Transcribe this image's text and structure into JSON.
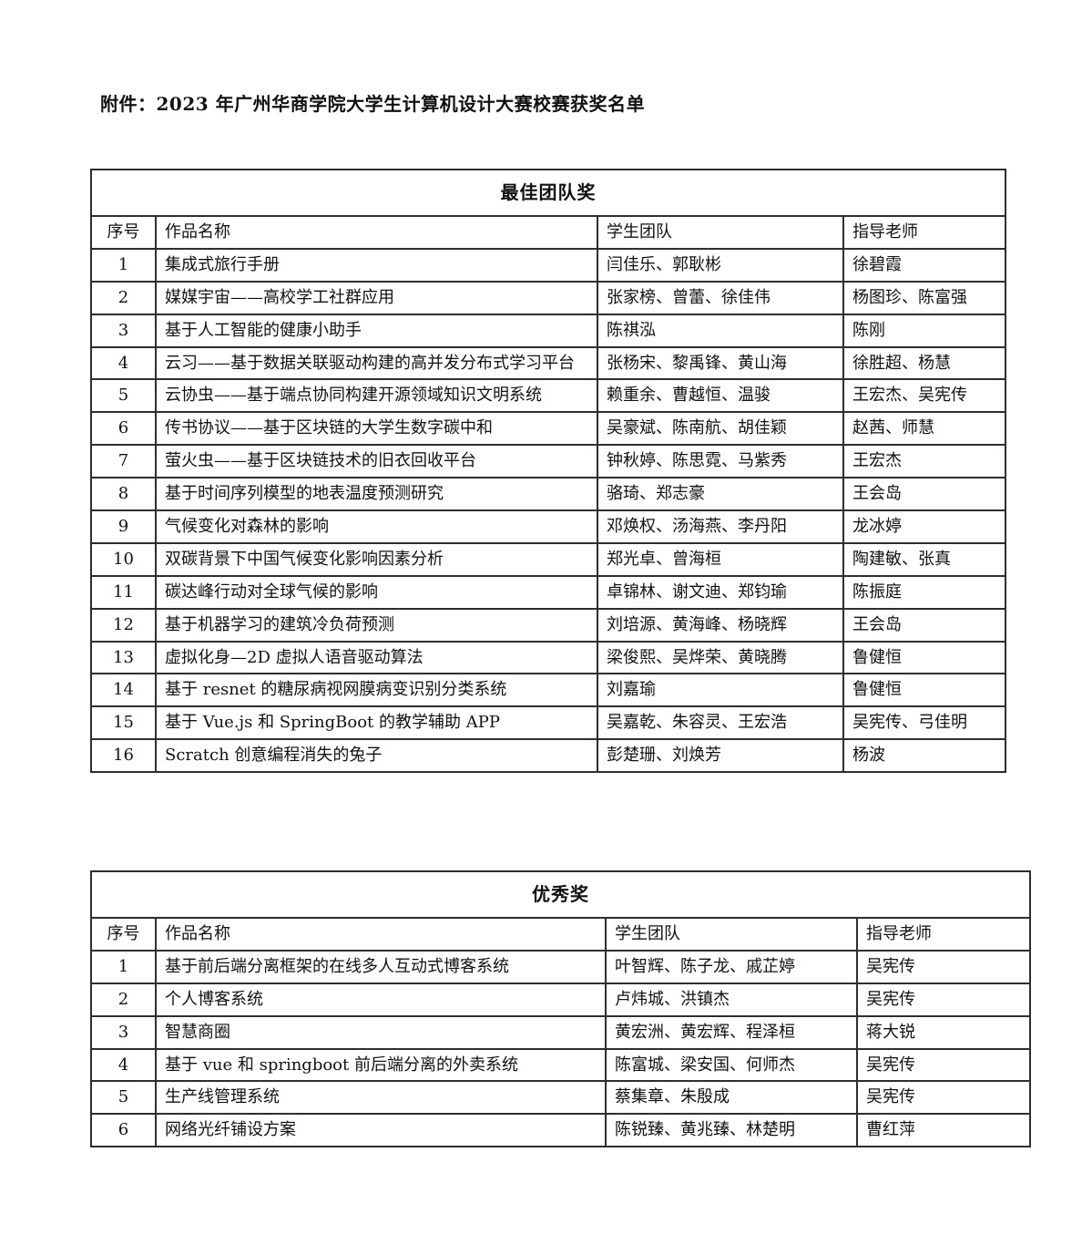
{
  "doc": {
    "title": "附件：2023 年广州华商学院大学生计算机设计大赛校赛获奖名单"
  },
  "tables": [
    {
      "title": "最佳团队奖",
      "headers": [
        "序号",
        "作品名称",
        "学生团队",
        "指导老师"
      ],
      "rows": [
        [
          "1",
          "集成式旅行手册",
          "闫佳乐、郭耿彬",
          "徐碧霞"
        ],
        [
          "2",
          "媒媒宇宙——高校学工社群应用",
          "张家榜、曾蕾、徐佳伟",
          "杨图珍、陈富强"
        ],
        [
          "3",
          "基于人工智能的健康小助手",
          "陈祺泓",
          "陈刚"
        ],
        [
          "4",
          "云习——基于数据关联驱动构建的高并发分布式学习平台",
          "张杨宋、黎禹锋、黄山海",
          "徐胜超、杨慧"
        ],
        [
          "5",
          "云协虫——基于端点协同构建开源领域知识文明系统",
          "赖重余、曹越恒、温骏",
          "王宏杰、吴宪传"
        ],
        [
          "6",
          "传书协议——基于区块链的大学生数字碳中和",
          "吴豪斌、陈南航、胡佳颖",
          "赵茜、师慧"
        ],
        [
          "7",
          "萤火虫——基于区块链技术的旧衣回收平台",
          "钟秋婷、陈思霓、马紫秀",
          "王宏杰"
        ],
        [
          "8",
          "基于时间序列模型的地表温度预测研究",
          "骆琦、郑志豪",
          "王会岛"
        ],
        [
          "9",
          "气候变化对森林的影响",
          "邓焕权、汤海燕、李丹阳",
          "龙冰婷"
        ],
        [
          "10",
          "双碳背景下中国气候变化影响因素分析",
          "郑光卓、曾海桓",
          "陶建敏、张真"
        ],
        [
          "11",
          "碳达峰行动对全球气候的影响",
          "卓锦林、谢文迪、郑钧瑜",
          "陈振庭"
        ],
        [
          "12",
          "基于机器学习的建筑冷负荷预测",
          "刘培源、黄海峰、杨晓辉",
          "王会岛"
        ],
        [
          "13",
          "虚拟化身—2D 虚拟人语音驱动算法",
          "梁俊熙、吴烨荣、黄晓腾",
          "鲁健恒"
        ],
        [
          "14",
          "基于 resnet 的糖尿病视网膜病变识别分类系统",
          "刘嘉瑜",
          "鲁健恒"
        ],
        [
          "15",
          "基于 Vue.js 和 SpringBoot 的教学辅助 APP",
          "吴嘉乾、朱容灵、王宏浩",
          "吴宪传、弓佳明"
        ],
        [
          "16",
          "Scratch 创意编程消失的兔子",
          "彭楚珊、刘焕芳",
          "杨波"
        ]
      ]
    },
    {
      "title": "优秀奖",
      "headers": [
        "序号",
        "作品名称",
        "学生团队",
        "指导老师"
      ],
      "rows": [
        [
          "1",
          "基于前后端分离框架的在线多人互动式博客系统",
          "叶智辉、陈子龙、戚芷婷",
          "吴宪传"
        ],
        [
          "2",
          "个人博客系统",
          "卢炜城、洪镇杰",
          "吴宪传"
        ],
        [
          "3",
          "智慧商圈",
          "黄宏洲、黄宏辉、程泽桓",
          "蒋大锐"
        ],
        [
          "4",
          "基于 vue 和 springboot 前后端分离的外卖系统",
          "陈富城、梁安国、何师杰",
          "吴宪传"
        ],
        [
          "5",
          "生产线管理系统",
          "蔡集章、朱殷成",
          "吴宪传"
        ],
        [
          "6",
          "网络光纤铺设方案",
          "陈锐臻、黄兆臻、林楚明",
          "曹红萍"
        ]
      ]
    }
  ]
}
